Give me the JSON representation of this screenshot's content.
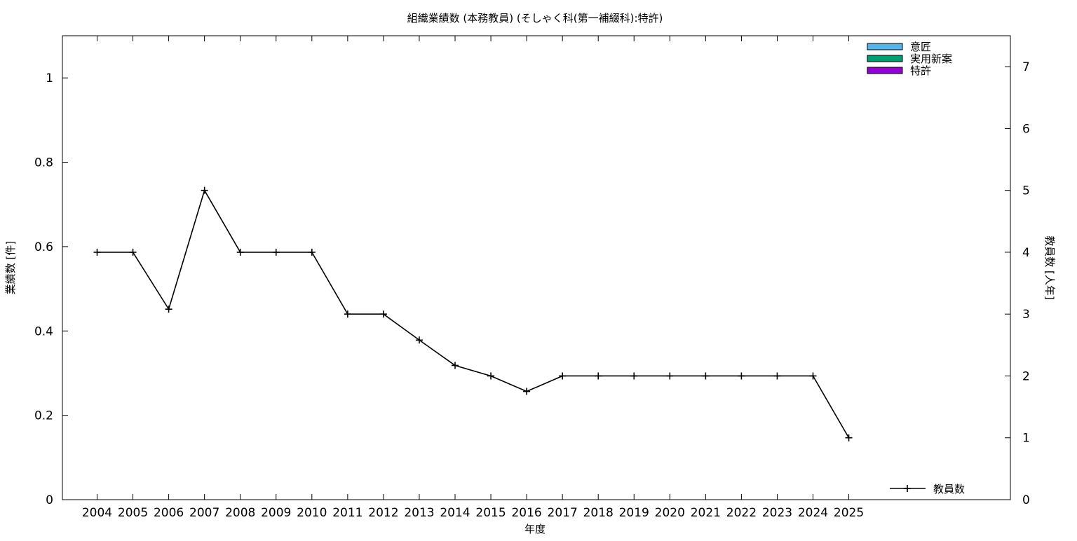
{
  "chart_data": {
    "type": "bar",
    "title": "組織業績数 (本務教員) (そしゃく科(第一補綴科):特許)",
    "xlabel": "年度",
    "ylabel": "業績数 [件]",
    "y2label": "教員数 [人年]",
    "categories": [
      "2004",
      "2005",
      "2006",
      "2007",
      "2008",
      "2009",
      "2010",
      "2011",
      "2012",
      "2013",
      "2014",
      "2015",
      "2016",
      "2017",
      "2018",
      "2019",
      "2020",
      "2021",
      "2022",
      "2023",
      "2024",
      "2025"
    ],
    "ylim": [
      0,
      1.1
    ],
    "y_ticks": [
      "0",
      "0.2",
      "0.4",
      "0.6",
      "0.8",
      "1"
    ],
    "y2lim": [
      0,
      7.5
    ],
    "y2_ticks": [
      "0",
      "1",
      "2",
      "3",
      "4",
      "5",
      "6",
      "7"
    ],
    "series": [
      {
        "name": "意匠",
        "type": "bar",
        "color": "#56b4e9",
        "values": [
          0,
          0,
          0,
          0,
          0,
          0,
          0,
          0,
          0,
          0,
          0,
          0,
          0,
          0,
          0,
          0,
          0,
          0,
          0,
          0,
          0,
          0
        ]
      },
      {
        "name": "実用新案",
        "type": "bar",
        "color": "#009e73",
        "values": [
          0,
          0,
          0,
          0,
          0,
          0,
          0,
          0,
          0,
          0,
          0,
          0,
          0,
          0,
          0,
          0,
          0,
          0,
          0,
          0,
          0,
          0
        ]
      },
      {
        "name": "特許",
        "type": "bar",
        "color": "#9400d3",
        "values": [
          0,
          0,
          0,
          0,
          0,
          0,
          0,
          0,
          0,
          0,
          0,
          0,
          0,
          0,
          0,
          0,
          0,
          0,
          0,
          0,
          0,
          0
        ]
      },
      {
        "name": "教員数",
        "type": "line",
        "axis": "y2",
        "color": "#000000",
        "values": [
          4,
          4,
          3.08,
          5,
          4,
          4,
          4,
          3,
          3,
          2.58,
          2.17,
          2,
          1.75,
          2,
          2,
          2,
          2,
          2,
          2,
          2,
          2,
          1
        ]
      }
    ],
    "legend_position": "top-right",
    "line_legend_position": "bottom-right",
    "grid": false
  }
}
